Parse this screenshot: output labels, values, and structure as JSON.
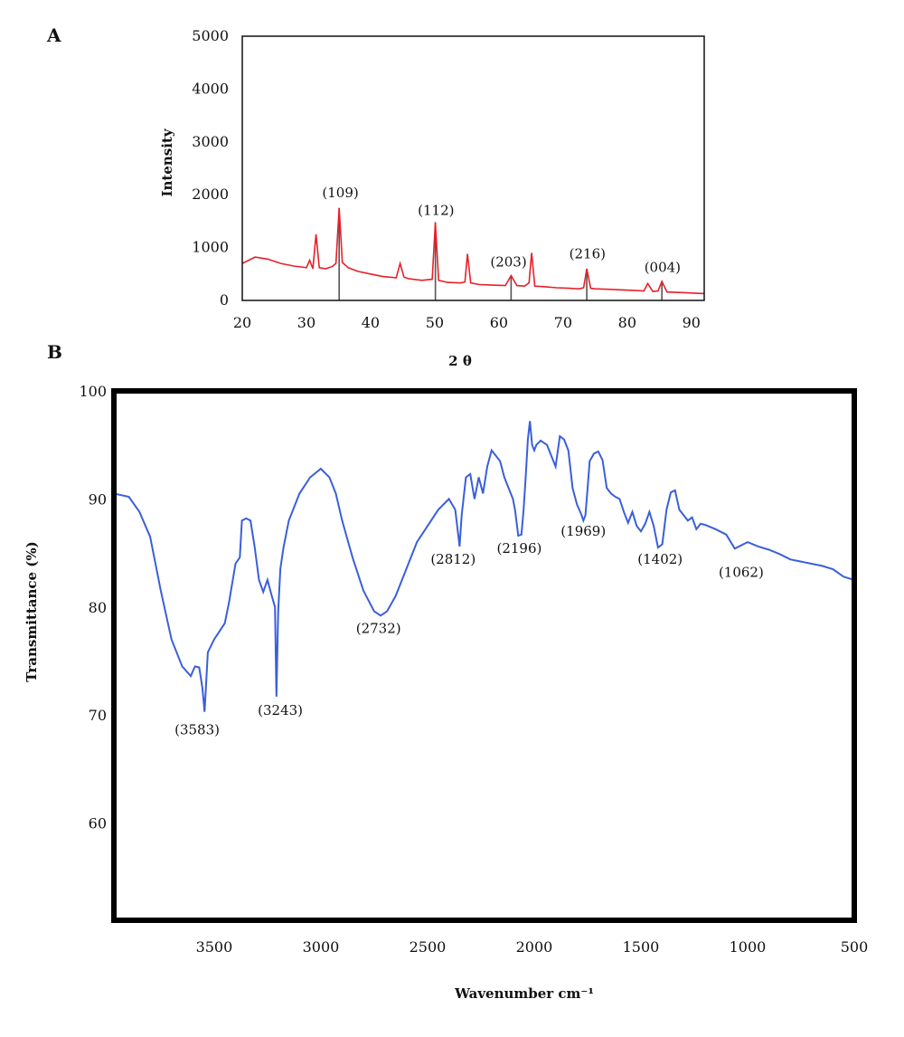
{
  "chart_data": [
    {
      "panel": "A",
      "type": "line",
      "xlabel": "2 θ",
      "ylabel": "Intensity",
      "xlim": [
        20,
        92
      ],
      "ylim": [
        0,
        5000
      ],
      "x_ticks": [
        20,
        30,
        40,
        50,
        60,
        70,
        80,
        90
      ],
      "y_ticks": [
        0,
        1000,
        2000,
        3000,
        4000,
        5000
      ],
      "grid": false,
      "series": [
        {
          "color": "#e8202a",
          "x": [
            20,
            22,
            24,
            26,
            28,
            30,
            30.5,
            31,
            31.5,
            32,
            33,
            34,
            34.6,
            35.1,
            35.6,
            36.5,
            38,
            40,
            42,
            44,
            44.6,
            45.2,
            46,
            48,
            49.6,
            50.1,
            50.6,
            52,
            54,
            54.7,
            55.1,
            55.6,
            57,
            59,
            61,
            61.9,
            62.8,
            64,
            64.7,
            65.1,
            65.6,
            67,
            69,
            71,
            72.5,
            73.2,
            73.7,
            74.3,
            75,
            77,
            79,
            81,
            82.6,
            83.2,
            84,
            84.8,
            85.4,
            86.2,
            88,
            90,
            92
          ],
          "y": [
            700,
            820,
            780,
            700,
            650,
            620,
            760,
            600,
            1250,
            620,
            600,
            640,
            700,
            1750,
            720,
            620,
            550,
            500,
            450,
            430,
            700,
            440,
            410,
            380,
            400,
            1480,
            380,
            340,
            330,
            350,
            880,
            330,
            300,
            290,
            280,
            470,
            280,
            270,
            330,
            900,
            270,
            260,
            240,
            230,
            220,
            240,
            600,
            230,
            220,
            210,
            200,
            190,
            180,
            320,
            170,
            180,
            360,
            160,
            150,
            140,
            130
          ]
        }
      ],
      "reference_lines": [
        {
          "x": 35.1,
          "top": 1750
        },
        {
          "x": 50.1,
          "top": 1480
        },
        {
          "x": 61.9,
          "top": 470
        },
        {
          "x": 73.7,
          "top": 600
        },
        {
          "x": 85.4,
          "top": 360
        }
      ],
      "annotations": [
        {
          "text": "(109)",
          "x": 35.3,
          "y": 1950
        },
        {
          "text": "(112)",
          "x": 50.2,
          "y": 1620
        },
        {
          "text": "(203)",
          "x": 61.5,
          "y": 640
        },
        {
          "text": "(216)",
          "x": 73.8,
          "y": 800
        },
        {
          "text": "(004)",
          "x": 85.5,
          "y": 540
        }
      ]
    },
    {
      "panel": "B",
      "type": "line",
      "xlabel": "Wavenumber cm⁻¹",
      "ylabel": "Transmittance (%)",
      "xlim": [
        3970,
        500
      ],
      "ylim": [
        51,
        100
      ],
      "x_ticks": [
        3500,
        3000,
        2500,
        2000,
        1500,
        1000,
        500
      ],
      "y_ticks": [
        60,
        70,
        80,
        90,
        100
      ],
      "grid": false,
      "series": [
        {
          "color": "#3a5fd9",
          "x": [
            3970,
            3900,
            3850,
            3800,
            3750,
            3700,
            3650,
            3610,
            3590,
            3570,
            3555,
            3545,
            3530,
            3500,
            3450,
            3430,
            3400,
            3380,
            3370,
            3350,
            3330,
            3310,
            3290,
            3270,
            3250,
            3230,
            3215,
            3208,
            3200,
            3190,
            3175,
            3150,
            3100,
            3050,
            3000,
            2960,
            2930,
            2900,
            2850,
            2800,
            2750,
            2720,
            2690,
            2650,
            2600,
            2550,
            2500,
            2450,
            2400,
            2370,
            2350,
            2340,
            2320,
            2300,
            2280,
            2260,
            2240,
            2220,
            2200,
            2180,
            2160,
            2140,
            2120,
            2100,
            2090,
            2075,
            2060,
            2050,
            2040,
            2030,
            2020,
            2010,
            2000,
            1990,
            1970,
            1940,
            1920,
            1900,
            1880,
            1860,
            1840,
            1820,
            1800,
            1780,
            1770,
            1760,
            1750,
            1740,
            1720,
            1700,
            1680,
            1660,
            1640,
            1620,
            1600,
            1580,
            1560,
            1540,
            1520,
            1500,
            1480,
            1460,
            1440,
            1420,
            1400,
            1380,
            1360,
            1340,
            1320,
            1300,
            1280,
            1260,
            1240,
            1220,
            1200,
            1150,
            1100,
            1060,
            1040,
            1000,
            950,
            900,
            850,
            800,
            750,
            700,
            650,
            600,
            550,
            500
          ],
          "y": [
            90.5,
            90.2,
            88.8,
            86.5,
            81.5,
            77.0,
            74.5,
            73.6,
            74.5,
            74.4,
            72.5,
            70.3,
            75.8,
            77.0,
            78.5,
            80.5,
            84.0,
            84.6,
            88.0,
            88.2,
            88.0,
            85.5,
            82.5,
            81.4,
            82.5,
            81.0,
            80.0,
            71.7,
            79.5,
            83.5,
            85.5,
            88.0,
            90.5,
            92.0,
            92.8,
            92.0,
            90.5,
            88.0,
            84.5,
            81.5,
            79.6,
            79.2,
            79.6,
            81.0,
            83.5,
            86.0,
            87.5,
            89.0,
            90.0,
            89.0,
            85.6,
            88.5,
            92.0,
            92.3,
            90.0,
            92.0,
            90.5,
            93.0,
            94.5,
            94.0,
            93.5,
            92.0,
            91.0,
            90.0,
            89.0,
            86.6,
            86.7,
            89.0,
            92.0,
            95.5,
            97.2,
            95.0,
            94.5,
            95.0,
            95.4,
            95.0,
            94.0,
            93.0,
            95.8,
            95.5,
            94.5,
            91.0,
            89.5,
            88.6,
            88.0,
            88.5,
            91.0,
            93.5,
            94.2,
            94.4,
            93.6,
            91.0,
            90.5,
            90.2,
            90.0,
            88.8,
            87.8,
            88.8,
            87.5,
            87.0,
            87.7,
            88.8,
            87.5,
            85.5,
            85.8,
            89.0,
            90.6,
            90.8,
            89.0,
            88.5,
            88.0,
            88.3,
            87.2,
            87.7,
            87.6,
            87.2,
            86.7,
            85.4,
            85.6,
            86.0,
            85.6,
            85.3,
            84.9,
            84.4,
            84.2,
            84.0,
            83.8,
            83.5,
            82.8,
            82.5
          ]
        }
      ],
      "annotations": [
        {
          "text": "(3583)",
          "x": 3580,
          "y": 68.2
        },
        {
          "text": "(3243)",
          "x": 3190,
          "y": 70.0
        },
        {
          "text": "(2732)",
          "x": 2730,
          "y": 77.6
        },
        {
          "text": "(2812)",
          "x": 2380,
          "y": 84.0
        },
        {
          "text": "(2196)",
          "x": 2070,
          "y": 85.0
        },
        {
          "text": "(1969)",
          "x": 1770,
          "y": 86.6
        },
        {
          "text": "(1402)",
          "x": 1410,
          "y": 84.0
        },
        {
          "text": "(1062)",
          "x": 1030,
          "y": 82.8
        }
      ]
    }
  ]
}
